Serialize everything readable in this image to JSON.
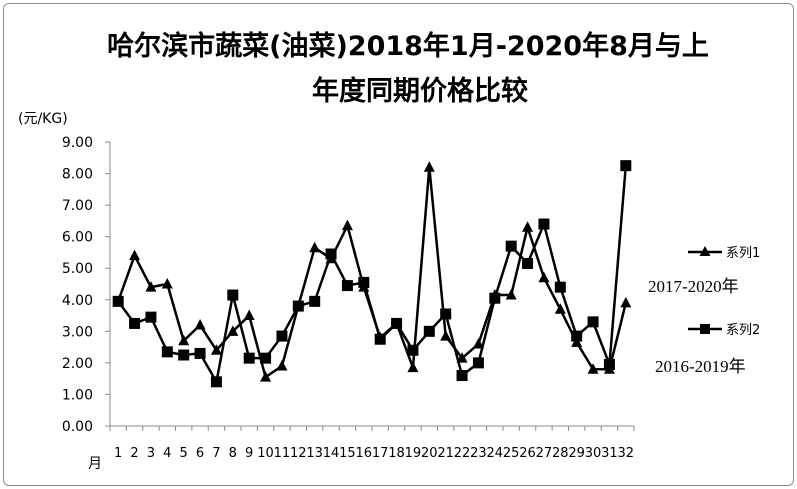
{
  "chart_data": {
    "type": "line",
    "title_line1": "哈尔滨市蔬菜(油菜)2018年1月-2020年8月与上",
    "title_line2": "年度同期价格比较",
    "ylabel": "(元/KG)",
    "xlabel": "月",
    "ylim": [
      0,
      9
    ],
    "yticks": [
      "0.00",
      "1.00",
      "2.00",
      "3.00",
      "4.00",
      "5.00",
      "6.00",
      "7.00",
      "8.00",
      "9.00"
    ],
    "categories": [
      "1",
      "2",
      "3",
      "4",
      "5",
      "6",
      "7",
      "8",
      "9",
      "10",
      "11",
      "12",
      "13",
      "14",
      "15",
      "16",
      "17",
      "18",
      "19",
      "20",
      "21",
      "22",
      "23",
      "24",
      "25",
      "26",
      "27",
      "28",
      "29",
      "30",
      "31",
      "32"
    ],
    "series": [
      {
        "name": "系列1",
        "marker": "triangle",
        "note": "2017-2020年",
        "values": [
          3.95,
          5.4,
          4.4,
          4.5,
          2.7,
          3.2,
          2.4,
          3.0,
          3.5,
          1.55,
          1.9,
          3.8,
          5.65,
          5.3,
          6.35,
          4.4,
          2.8,
          3.25,
          1.85,
          8.2,
          2.85,
          2.15,
          2.6,
          4.15,
          4.15,
          6.3,
          4.7,
          3.7,
          2.65,
          1.8,
          1.8,
          3.9
        ]
      },
      {
        "name": "系列2",
        "marker": "square",
        "note": "2016-2019年",
        "values": [
          3.95,
          3.25,
          3.45,
          2.35,
          2.25,
          2.3,
          1.4,
          4.15,
          2.15,
          2.15,
          2.85,
          3.8,
          3.95,
          5.45,
          4.45,
          4.55,
          2.75,
          3.25,
          2.4,
          3.0,
          3.55,
          1.6,
          2.0,
          4.05,
          5.7,
          5.15,
          6.4,
          4.4,
          2.85,
          3.3,
          1.95,
          8.25
        ]
      }
    ]
  }
}
